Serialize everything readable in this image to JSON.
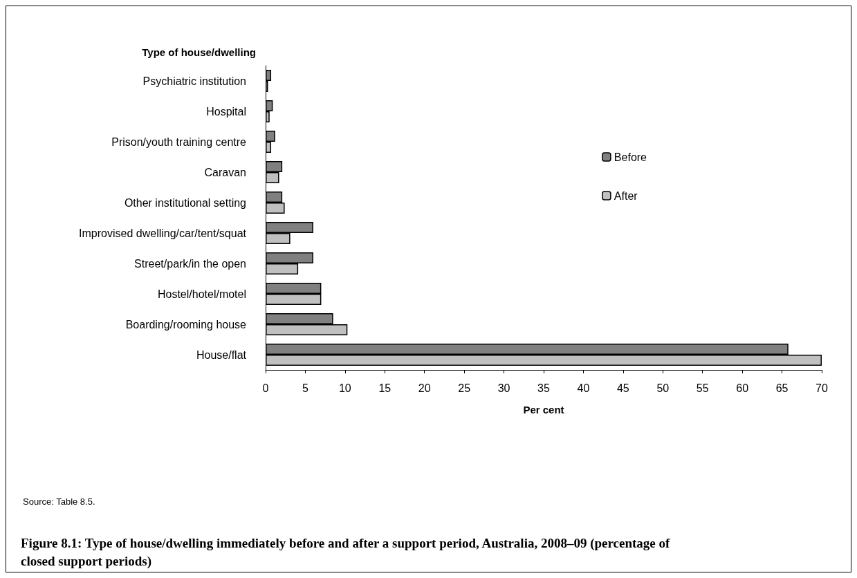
{
  "chart_data": {
    "type": "bar",
    "orientation": "horizontal",
    "title": "Figure 8.1: Type of house/dwelling immediately before and after a support period, Australia, 2008–09 (percentage of closed support periods)",
    "xlabel": "Per cent",
    "ylabel": "Type of house/dwelling",
    "annotations": [
      "Source: Table 8.5."
    ],
    "categories": [
      "Psychiatric institution",
      "Hospital",
      "Prison/youth training centre",
      "Caravan",
      "Other institutional setting",
      "Improvised dwelling/car/tent/squat",
      "Street/park/in the open",
      "Hostel/hotel/motel",
      "Boarding/rooming house",
      "House/flat"
    ],
    "series": [
      {
        "name": "Before",
        "color": "#808080",
        "values": [
          0.7,
          0.9,
          1.2,
          2.1,
          2.1,
          6.0,
          6.0,
          7.0,
          8.5,
          65.8
        ]
      },
      {
        "name": "After",
        "color": "#c0c0c0",
        "values": [
          0.3,
          0.5,
          0.7,
          1.7,
          2.4,
          3.1,
          4.1,
          7.0,
          10.3,
          70.0
        ]
      }
    ],
    "xlim": [
      0,
      70
    ],
    "xticks": [
      0,
      5,
      10,
      15,
      20,
      25,
      30,
      35,
      40,
      45,
      50,
      55,
      60,
      65,
      70
    ],
    "grid": false,
    "legend": "top right"
  }
}
